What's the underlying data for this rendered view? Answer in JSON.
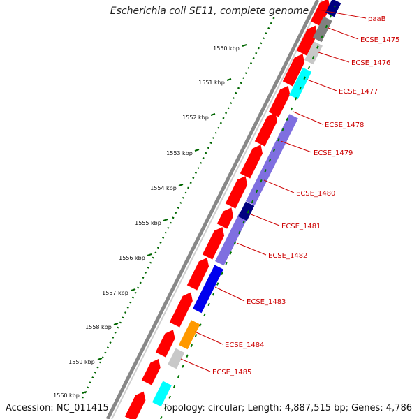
{
  "title": "Escherichia coli SE11, complete genome",
  "footer": {
    "accession": "Accession: NC_011415",
    "summary": "Topology: circular; Length: 4,887,515 bp; Genes: 4,786"
  },
  "ticks": [
    "1550 kbp",
    "1551 kbp",
    "1552 kbp",
    "1553 kbp",
    "1554 kbp",
    "1555 kbp",
    "1556 kbp",
    "1557 kbp",
    "1558 kbp",
    "1559 kbp",
    "1560 kbp"
  ],
  "genes": [
    "paaB",
    "ECSE_1475",
    "ECSE_1476",
    "ECSE_1477",
    "ECSE_1478",
    "ECSE_1479",
    "ECSE_1480",
    "ECSE_1481",
    "ECSE_1482",
    "ECSE_1483",
    "ECSE_1484",
    "ECSE_1485"
  ],
  "colors": {
    "cds": "#ff0000",
    "backbone": "#888888",
    "label": "#cc0000",
    "gc_tick": "#006600",
    "cog_dark_blue": "#000080",
    "cog_gray": "#808080",
    "cog_light_gray": "#c8c8c8",
    "cog_cyan": "#00ffff",
    "cog_lavender": "#7f6fe0",
    "cog_blue": "#0000ee",
    "cog_orange": "#ff9900"
  }
}
